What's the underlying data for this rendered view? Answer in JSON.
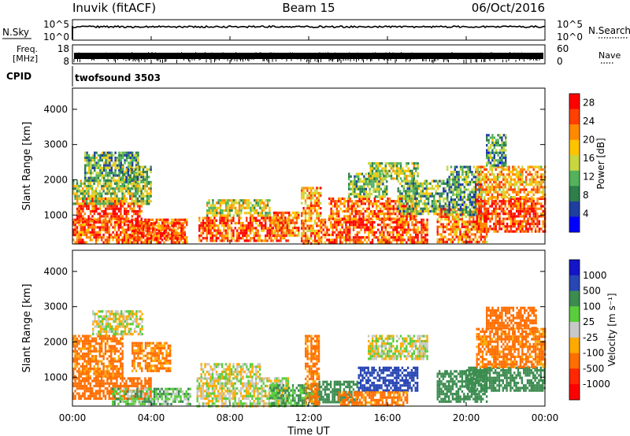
{
  "header": {
    "station": "Inuvik (fitACF)",
    "beam": "Beam 15",
    "date": "06/Oct/2016"
  },
  "top_panels": {
    "nsky_label": "N.Sky",
    "nsky_ticks": [
      "10^5",
      "10^0"
    ],
    "nsearch_label": "N.Search",
    "nsearch_ticks": [
      "10^5",
      "10^0"
    ],
    "freq_label_1": "Freq.",
    "freq_label_2": "[MHz]",
    "freq_ticks": [
      "18",
      "8"
    ],
    "nave_label": "Nave",
    "nave_ticks": [
      "60",
      "0"
    ],
    "cpid_label": "CPID",
    "cpid_value": "twofsound 3503"
  },
  "colors": {
    "power_scale": [
      "#0000ff",
      "#1e3fa0",
      "#2e7f4a",
      "#52b35a",
      "#c8d640",
      "#ffc400",
      "#ff8a00",
      "#ff4000",
      "#ff0000"
    ],
    "velocity_scale": [
      "#1414c8",
      "#2846b4",
      "#3c8c50",
      "#5acd3c",
      "#c8c8c8",
      "#ffaa00",
      "#ff6e00",
      "#ff2800",
      "#ff0000"
    ]
  },
  "chart_data": [
    {
      "type": "heatmap",
      "title": "",
      "ylabel": "Slant Range [km]",
      "xlabel": "",
      "x_ticks": [
        "00:00",
        "04:00",
        "08:00",
        "12:00",
        "16:00",
        "20:00",
        "00:00"
      ],
      "y_ticks": [
        "1000",
        "2000",
        "3000",
        "4000"
      ],
      "ylim": [
        180,
        4600
      ],
      "xlim_hours": [
        0,
        24
      ],
      "colorbar_label": "Power [dB]",
      "colorbar_ticks": [
        "4",
        "8",
        "12",
        "16",
        "20",
        "24",
        "28"
      ],
      "zlim": [
        0,
        30
      ],
      "regions": [
        {
          "t": [
            0.0,
            5.8
          ],
          "r": [
            200,
            900
          ],
          "v": 24
        },
        {
          "t": [
            0.2,
            3.5
          ],
          "r": [
            800,
            1500
          ],
          "v": 26
        },
        {
          "t": [
            0.0,
            4.0
          ],
          "r": [
            1300,
            2000
          ],
          "v": 14
        },
        {
          "t": [
            0.6,
            3.3
          ],
          "r": [
            2000,
            2800
          ],
          "v": 11
        },
        {
          "t": [
            2.4,
            4.0
          ],
          "r": [
            1900,
            2400
          ],
          "v": 12
        },
        {
          "t": [
            3.0,
            5.6
          ],
          "r": [
            300,
            800
          ],
          "v": 25
        },
        {
          "t": [
            6.4,
            11.0
          ],
          "r": [
            300,
            950
          ],
          "v": 25
        },
        {
          "t": [
            6.8,
            10.0
          ],
          "r": [
            1000,
            1450
          ],
          "v": 16
        },
        {
          "t": [
            10.0,
            11.5
          ],
          "r": [
            400,
            1100
          ],
          "v": 22
        },
        {
          "t": [
            11.6,
            12.6
          ],
          "r": [
            200,
            1800
          ],
          "v": 21
        },
        {
          "t": [
            12.6,
            18.0
          ],
          "r": [
            200,
            900
          ],
          "v": 25
        },
        {
          "t": [
            13.0,
            17.5
          ],
          "r": [
            900,
            1500
          ],
          "v": 24
        },
        {
          "t": [
            14.0,
            16.0
          ],
          "r": [
            1500,
            2200
          ],
          "v": 12
        },
        {
          "t": [
            15.0,
            17.5
          ],
          "r": [
            2000,
            2500
          ],
          "v": 14
        },
        {
          "t": [
            16.5,
            19.0
          ],
          "r": [
            1000,
            2000
          ],
          "v": 12
        },
        {
          "t": [
            18.5,
            21.0
          ],
          "r": [
            200,
            1200
          ],
          "v": 22
        },
        {
          "t": [
            19.0,
            20.8
          ],
          "r": [
            1000,
            2400
          ],
          "v": 10
        },
        {
          "t": [
            20.5,
            24.0
          ],
          "r": [
            500,
            1500
          ],
          "v": 26
        },
        {
          "t": [
            20.5,
            24.0
          ],
          "r": [
            1500,
            2400
          ],
          "v": 20
        },
        {
          "t": [
            21.0,
            22.0
          ],
          "r": [
            2400,
            3300
          ],
          "v": 10
        }
      ]
    },
    {
      "type": "heatmap",
      "title": "",
      "ylabel": "Slant Range [km]",
      "xlabel": "Time UT",
      "x_ticks": [
        "00:00",
        "04:00",
        "08:00",
        "12:00",
        "16:00",
        "20:00",
        "00:00"
      ],
      "y_ticks": [
        "1000",
        "2000",
        "3000",
        "4000"
      ],
      "ylim": [
        180,
        4600
      ],
      "xlim_hours": [
        0,
        24
      ],
      "colorbar_label": "Velocity [m s⁻¹]",
      "colorbar_ticks": [
        "1000",
        "500",
        "100",
        "25",
        "-25",
        "-100",
        "-500",
        "-1000"
      ],
      "zlim": [
        -1200,
        1200
      ],
      "regions": [
        {
          "t": [
            0.0,
            2.5
          ],
          "r": [
            1000,
            2200
          ],
          "v": -150
        },
        {
          "t": [
            0.0,
            4.0
          ],
          "r": [
            400,
            1000
          ],
          "v": -200
        },
        {
          "t": [
            1.0,
            3.5
          ],
          "r": [
            2200,
            2900
          ],
          "v": 0
        },
        {
          "t": [
            2.0,
            6.0
          ],
          "r": [
            200,
            700
          ],
          "v": 60
        },
        {
          "t": [
            3.0,
            5.0
          ],
          "r": [
            1200,
            2000
          ],
          "v": -120
        },
        {
          "t": [
            6.3,
            11.0
          ],
          "r": [
            200,
            1000
          ],
          "v": 0
        },
        {
          "t": [
            6.5,
            9.5
          ],
          "r": [
            1000,
            1400
          ],
          "v": 0
        },
        {
          "t": [
            10.0,
            12.5
          ],
          "r": [
            200,
            800
          ],
          "v": 120
        },
        {
          "t": [
            11.8,
            12.5
          ],
          "r": [
            200,
            2200
          ],
          "v": -150
        },
        {
          "t": [
            12.5,
            14.5
          ],
          "r": [
            300,
            900
          ],
          "v": 200
        },
        {
          "t": [
            14.5,
            17.5
          ],
          "r": [
            600,
            1300
          ],
          "v": 800
        },
        {
          "t": [
            13.5,
            17.0
          ],
          "r": [
            200,
            600
          ],
          "v": -150
        },
        {
          "t": [
            15.0,
            18.0
          ],
          "r": [
            1500,
            2200
          ],
          "v": 0
        },
        {
          "t": [
            18.5,
            21.0
          ],
          "r": [
            300,
            1200
          ],
          "v": 300
        },
        {
          "t": [
            20.0,
            24.0
          ],
          "r": [
            600,
            1300
          ],
          "v": 200
        },
        {
          "t": [
            20.5,
            24.0
          ],
          "r": [
            1300,
            2400
          ],
          "v": -150
        },
        {
          "t": [
            21.0,
            23.5
          ],
          "r": [
            2400,
            3000
          ],
          "v": -200
        }
      ]
    }
  ]
}
